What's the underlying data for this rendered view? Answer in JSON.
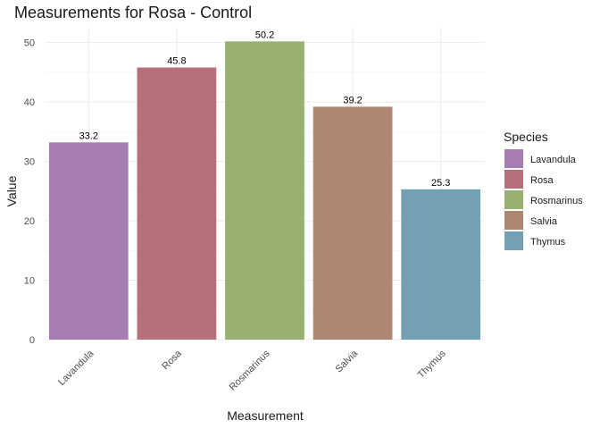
{
  "chart_data": {
    "type": "bar",
    "title": "Measurements for Rosa - Control",
    "xlabel": "Measurement",
    "ylabel": "Value",
    "categories": [
      "Lavandula",
      "Rosa",
      "Rosmarinus",
      "Salvia",
      "Thymus"
    ],
    "values": [
      33.2,
      45.8,
      50.2,
      39.2,
      25.3
    ],
    "data_labels": [
      "33.2",
      "45.8",
      "50.2",
      "39.2",
      "25.3"
    ],
    "colors": [
      "#a57db3",
      "#b5707a",
      "#98b173",
      "#ae8672",
      "#73a0b3"
    ],
    "ylim": [
      0,
      52.5
    ],
    "yticks": [
      0,
      10,
      20,
      30,
      40,
      50
    ],
    "ytick_labels": [
      "0",
      "10",
      "20",
      "30",
      "40",
      "50"
    ],
    "grid": true,
    "legend": {
      "title": "Species",
      "position": "right",
      "entries": [
        "Lavandula",
        "Rosa",
        "Rosmarinus",
        "Salvia",
        "Thymus"
      ]
    }
  }
}
